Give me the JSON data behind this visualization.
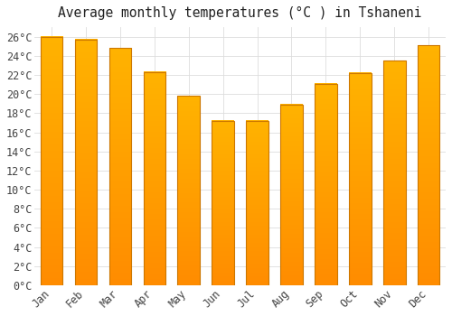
{
  "title": "Average monthly temperatures (°C ) in Tshaneni",
  "months": [
    "Jan",
    "Feb",
    "Mar",
    "Apr",
    "May",
    "Jun",
    "Jul",
    "Aug",
    "Sep",
    "Oct",
    "Nov",
    "Dec"
  ],
  "values": [
    26.0,
    25.7,
    24.8,
    22.3,
    19.8,
    17.2,
    17.2,
    18.9,
    21.1,
    22.2,
    23.5,
    25.1
  ],
  "bar_color_top": "#FFB300",
  "bar_color_bottom": "#FF8C00",
  "bar_edge_color": "#CC7700",
  "background_color": "#FFFFFF",
  "plot_bg_color": "#FFFFFF",
  "grid_color": "#DDDDDD",
  "text_color": "#444444",
  "title_color": "#222222",
  "ylim": [
    0,
    27
  ],
  "yticks": [
    0,
    2,
    4,
    6,
    8,
    10,
    12,
    14,
    16,
    18,
    20,
    22,
    24,
    26
  ],
  "title_fontsize": 10.5,
  "tick_fontsize": 8.5,
  "figsize": [
    5.0,
    3.5
  ],
  "dpi": 100,
  "bar_width": 0.65
}
